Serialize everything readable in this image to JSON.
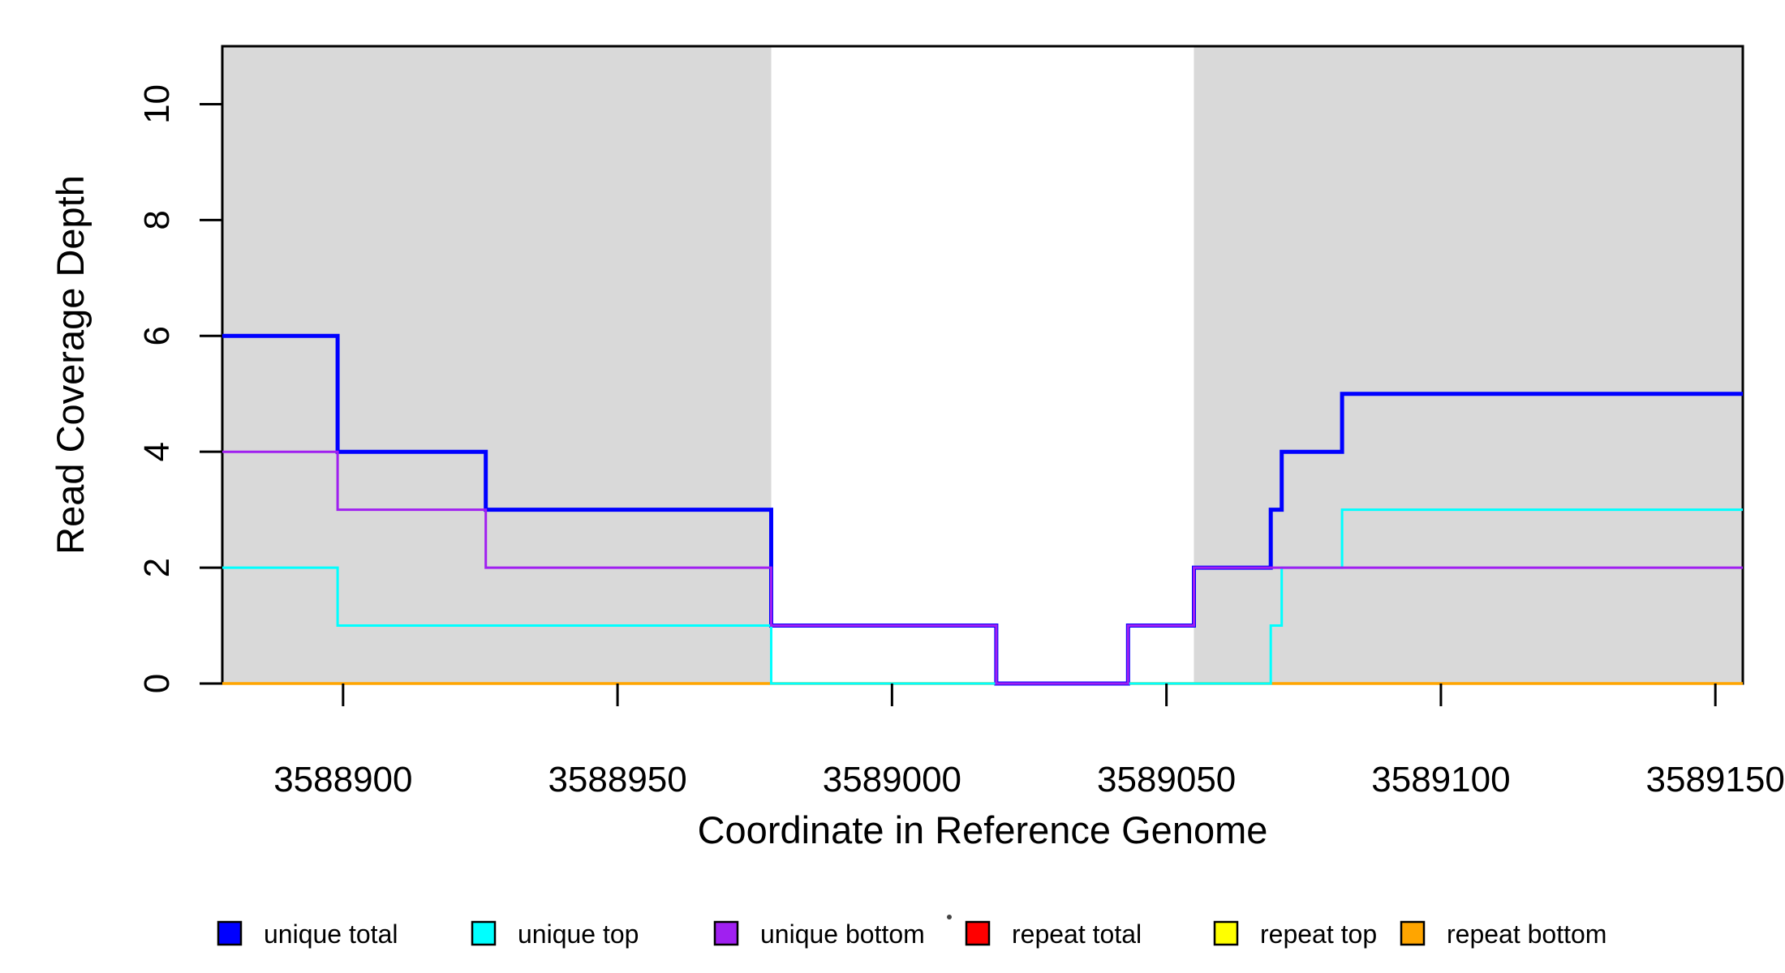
{
  "chart_data": {
    "type": "line",
    "subtype": "step",
    "title": "",
    "xlabel": "Coordinate in Reference Genome",
    "ylabel": "Read Coverage Depth",
    "xlim": [
      3588878,
      3589155
    ],
    "ylim": [
      0,
      11
    ],
    "x_ticks": [
      "3588900",
      "3588950",
      "3589000",
      "3589050",
      "3589100",
      "3589150"
    ],
    "x_tick_values": [
      3588900,
      3588950,
      3589000,
      3589050,
      3589100,
      3589150
    ],
    "y_ticks": [
      "0",
      "2",
      "4",
      "6",
      "8",
      "10"
    ],
    "y_tick_values": [
      0,
      2,
      4,
      6,
      8,
      10
    ],
    "grid": false,
    "legend_position": "bottom-horizontal",
    "plot_background": "#FFFFFF",
    "axis_color": "#000000",
    "shaded_region_color": "#D9D9D9",
    "highlight_regions": [
      {
        "label": "left-shaded-region",
        "x_start": 3588878,
        "x_end": 3588978
      },
      {
        "label": "right-shaded-region",
        "x_start": 3589055,
        "x_end": 3589155
      }
    ],
    "series": [
      {
        "name": "unique total",
        "color": "#0000FF",
        "line_width": 5,
        "steps": [
          [
            3588878,
            6
          ],
          [
            3588899,
            4
          ],
          [
            3588926,
            3
          ],
          [
            3588978,
            1
          ],
          [
            3589019,
            0
          ],
          [
            3589043,
            1
          ],
          [
            3589055,
            2
          ],
          [
            3589069,
            3
          ],
          [
            3589071,
            4
          ],
          [
            3589082,
            5
          ]
        ]
      },
      {
        "name": "unique top",
        "color": "#00FFFF",
        "line_width": 3,
        "steps": [
          [
            3588878,
            2
          ],
          [
            3588899,
            1
          ],
          [
            3588978,
            0
          ],
          [
            3589069,
            1
          ],
          [
            3589071,
            2
          ],
          [
            3589082,
            3
          ]
        ]
      },
      {
        "name": "unique bottom",
        "color": "#A020F0",
        "line_width": 3,
        "steps": [
          [
            3588878,
            4
          ],
          [
            3588899,
            3
          ],
          [
            3588926,
            2
          ],
          [
            3588978,
            1
          ],
          [
            3589019,
            0
          ],
          [
            3589043,
            1
          ],
          [
            3589055,
            2
          ]
        ]
      },
      {
        "name": "repeat total",
        "color": "#FF0000",
        "line_width": 3,
        "steps": [
          [
            3588878,
            0
          ]
        ]
      },
      {
        "name": "repeat top",
        "color": "#FFFF00",
        "line_width": 3,
        "steps": [
          [
            3588878,
            0
          ]
        ]
      },
      {
        "name": "repeat bottom",
        "color": "#FFA500",
        "line_width": 3.5,
        "steps": [
          [
            3588878,
            0
          ]
        ]
      }
    ],
    "draw_order": [
      3,
      4,
      5,
      0,
      1,
      2
    ]
  }
}
